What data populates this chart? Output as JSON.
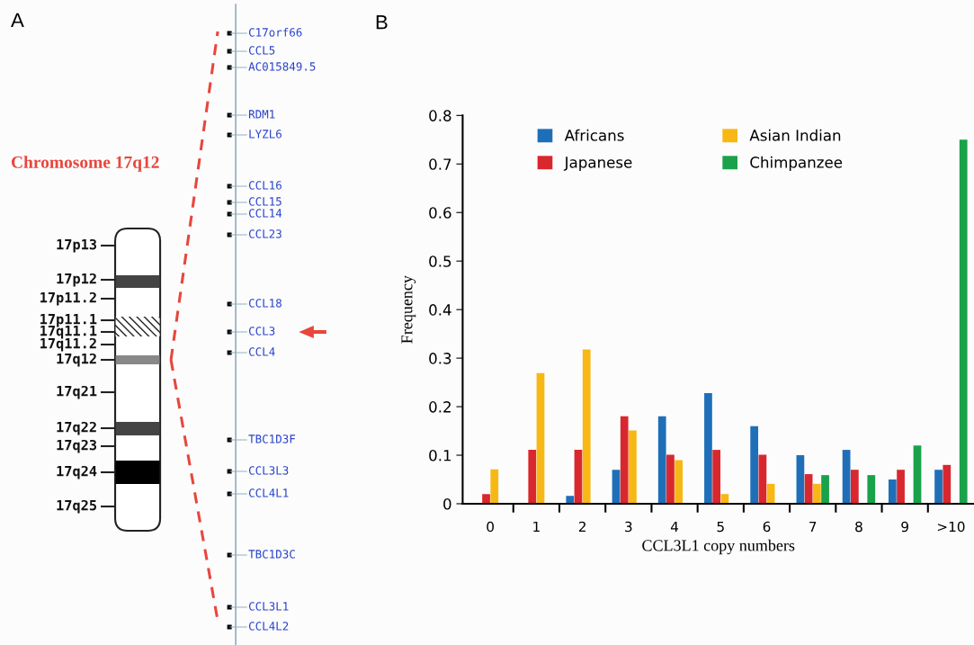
{
  "chart_data": [
    {
      "type": "other",
      "title": "A",
      "annotations": [
        "Chromosome 17q12",
        "17p13",
        "17p12",
        "17p11.2",
        "17p11.1",
        "17q11.1",
        "17q11.2",
        "17q12",
        "17q21",
        "17q22",
        "17q23",
        "17q24",
        "17q25",
        "C17orf66",
        "CCL5",
        "AC015849.5",
        "RDM1",
        "LYZL6",
        "CCL16",
        "CCL15",
        "CCL14",
        "CCL23",
        "CCL18",
        "CCL3",
        "CCL4",
        "TBC1D3F",
        "CCL3L3",
        "CCL4L1",
        "TBC1D3C",
        "CCL3L1",
        "CCL4L2"
      ]
    },
    {
      "type": "bar",
      "title": "B",
      "xlabel": "CCL3L1 copy numbers",
      "ylabel": "Frequency",
      "categories": [
        "0",
        "1",
        "2",
        "3",
        "4",
        "5",
        "6",
        "7",
        "8",
        "9",
        ">10"
      ],
      "series": [
        {
          "name": "Africans",
          "color": "#1f6fb8",
          "values": [
            null,
            null,
            0.016,
            0.07,
            0.18,
            0.228,
            0.16,
            0.1,
            0.111,
            0.05,
            0.07
          ]
        },
        {
          "name": "Japanese",
          "color": "#d9272e",
          "values": [
            0.02,
            0.111,
            0.111,
            0.18,
            0.101,
            0.111,
            0.101,
            0.061,
            0.07,
            0.07,
            0.08
          ]
        },
        {
          "name": "Asian Indian",
          "color": "#f7b815",
          "values": [
            0.071,
            0.269,
            0.318,
            0.151,
            0.09,
            0.02,
            0.041,
            0.041,
            null,
            null,
            null
          ]
        },
        {
          "name": "Chimpanzee",
          "color": "#1aa24a",
          "values": [
            null,
            null,
            null,
            null,
            null,
            null,
            null,
            0.059,
            0.059,
            0.12,
            0.75
          ]
        }
      ],
      "ylim": [
        0,
        0.8
      ],
      "yticks": [
        0,
        0.1,
        0.2,
        0.3,
        0.4,
        0.5,
        0.6,
        0.7,
        0.8
      ],
      "grid": false,
      "legend": "top left"
    }
  ]
}
